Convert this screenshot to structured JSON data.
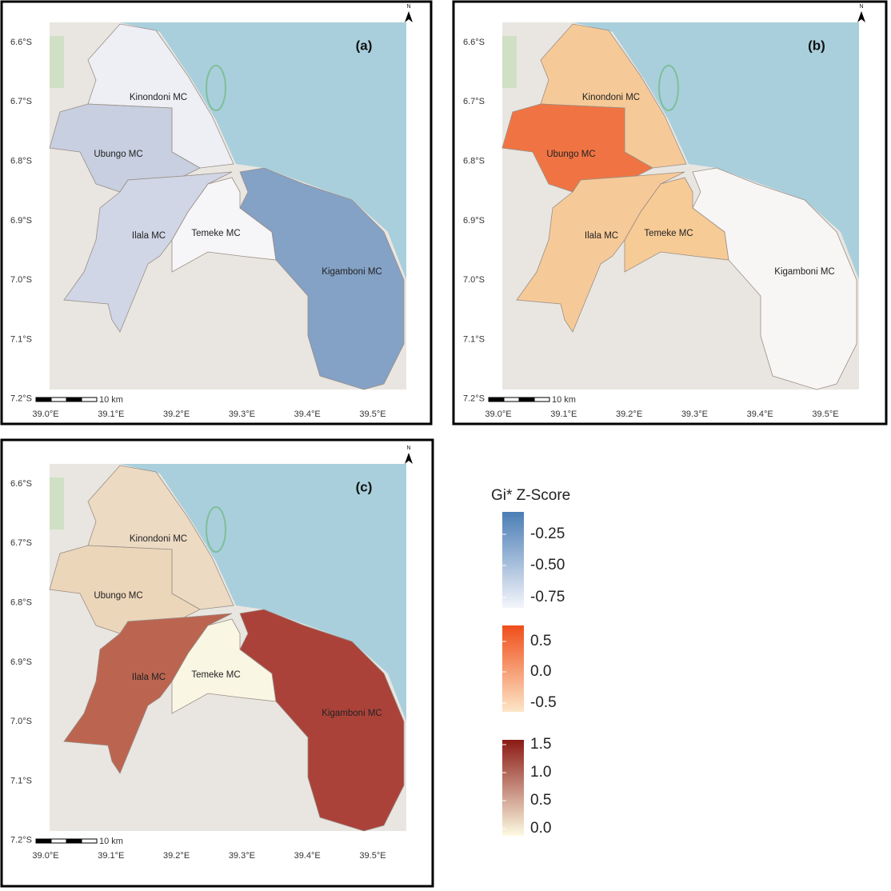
{
  "panels": [
    {
      "label": "(a)",
      "regions": [
        {
          "name": "Kinondoni MC",
          "color": "#eef0f6"
        },
        {
          "name": "Ubungo MC",
          "color": "#c3cde0"
        },
        {
          "name": "Ilala MC",
          "color": "#cdd5e6"
        },
        {
          "name": "Temeke MC",
          "color": "#f6f6f8"
        },
        {
          "name": "Kigamboni MC",
          "color": "#7b9bc3"
        }
      ]
    },
    {
      "label": "(b)",
      "regions": [
        {
          "name": "Kinondoni MC",
          "color": "#f6c891"
        },
        {
          "name": "Ubungo MC",
          "color": "#f06a35"
        },
        {
          "name": "Ilala MC",
          "color": "#f6c891"
        },
        {
          "name": "Temeke MC",
          "color": "#f7c98f"
        },
        {
          "name": "Kigamboni MC",
          "color": "#f8f7f6"
        }
      ]
    },
    {
      "label": "(c)",
      "regions": [
        {
          "name": "Kinondoni MC",
          "color": "#ecd9c0"
        },
        {
          "name": "Ubungo MC",
          "color": "#ecd5b6"
        },
        {
          "name": "Ilala MC",
          "color": "#b65a43"
        },
        {
          "name": "Temeke MC",
          "color": "#faf7e4"
        },
        {
          "name": "Kigamboni MC",
          "color": "#a5342b"
        }
      ]
    }
  ],
  "lat_ticks": [
    "6.6°S",
    "6.7°S",
    "6.8°S",
    "6.9°S",
    "7.0°S",
    "7.1°S",
    "7.2°S"
  ],
  "lon_ticks": [
    "39.0°E",
    "39.1°E",
    "39.2°E",
    "39.3°E",
    "39.4°E",
    "39.5°E"
  ],
  "scale_bar": "10 km",
  "north": "N",
  "legend": {
    "title": "Gi* Z-Score",
    "groups": [
      {
        "colors": [
          "#4a7db5",
          "#f4f5fb"
        ],
        "ticks": [
          "-0.25",
          "-0.50",
          "-0.75"
        ]
      },
      {
        "colors": [
          "#f04e1a",
          "#fce6c8"
        ],
        "ticks": [
          "0.5",
          "0.0",
          "-0.5"
        ]
      },
      {
        "colors": [
          "#8b1a14",
          "#fdfbe3"
        ],
        "ticks": [
          "1.5",
          "1.0",
          "0.5",
          "0.0"
        ]
      }
    ]
  }
}
